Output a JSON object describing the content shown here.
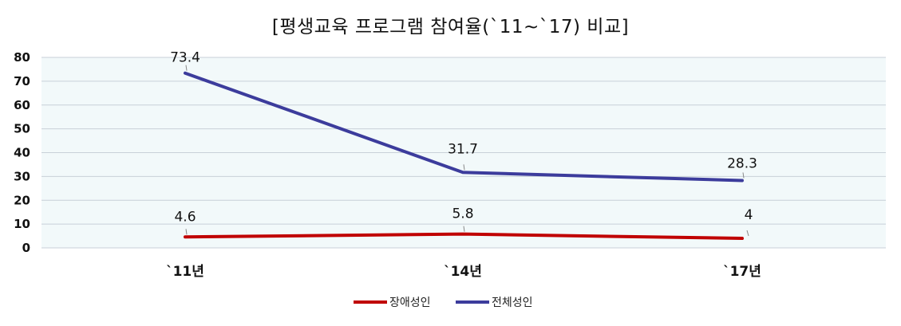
{
  "chart_data": {
    "type": "line",
    "title": "[평생교육 프로그램 참여율(`11~`17) 비교]",
    "categories": [
      "`11년",
      "`14년",
      "`17년"
    ],
    "series": [
      {
        "name": "장애성인",
        "values": [
          4.6,
          5.8,
          4
        ],
        "labels": [
          "4.6",
          "5.8",
          "4"
        ],
        "color": "#c00000"
      },
      {
        "name": "전체성인",
        "values": [
          73.4,
          31.7,
          28.3
        ],
        "labels": [
          "73.4",
          "31.7",
          "28.3"
        ],
        "color": "#3c3c9c"
      }
    ],
    "xlabel": "",
    "ylabel": "",
    "ylim": [
      0,
      80
    ],
    "yticks": [
      "0",
      "10",
      "20",
      "30",
      "40",
      "50",
      "60",
      "70",
      "80"
    ],
    "grid": true,
    "legend_position": "bottom",
    "plot_background": "#f2f9fa",
    "grid_color": "#c8d0d8"
  }
}
